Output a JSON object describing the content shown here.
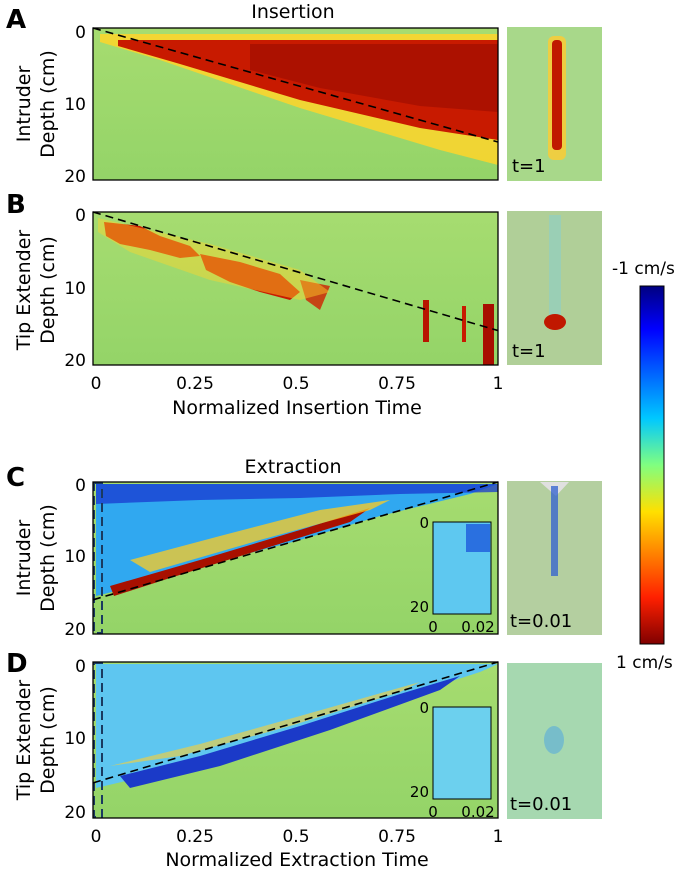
{
  "chart_data": [
    {
      "panel": "A",
      "type": "heatmap",
      "title": "Insertion",
      "ylabel_lines": [
        "Intruder",
        "Depth (cm)"
      ],
      "xlim": [
        0,
        1
      ],
      "ylim": [
        0,
        20
      ],
      "y_reversed": true,
      "yticks": [
        "0",
        "10",
        "20"
      ],
      "xticks": [],
      "reference_line": {
        "x": [
          0,
          1
        ],
        "y": [
          0,
          15
        ]
      },
      "region": "red band between depth 2 cm and the insertion front",
      "side_image_label": "t=1"
    },
    {
      "panel": "B",
      "type": "heatmap",
      "ylabel_lines": [
        "Tip Extender",
        "Depth (cm)"
      ],
      "xlabel": "Normalized Insertion Time",
      "xlim": [
        0,
        1
      ],
      "ylim": [
        0,
        20
      ],
      "y_reversed": true,
      "yticks": [
        "0",
        "10",
        "20"
      ],
      "xticks": [
        "0",
        "0.25",
        "0.5",
        "0.75",
        "1"
      ],
      "reference_line": {
        "x": [
          0,
          1
        ],
        "y": [
          0,
          15.5
        ]
      },
      "region": "localized red patches at the tip",
      "side_image_label": "t=1"
    },
    {
      "panel": "C",
      "type": "heatmap",
      "title": "Extraction",
      "ylabel_lines": [
        "Intruder",
        "Depth (cm)"
      ],
      "xlim": [
        0,
        1
      ],
      "ylim": [
        0,
        20
      ],
      "y_reversed": true,
      "yticks": [
        "0",
        "10",
        "20"
      ],
      "xticks": [],
      "reference_line": {
        "x": [
          0,
          1
        ],
        "y": [
          15.5,
          0
        ]
      },
      "region": "blue field above the extraction front with a red edge",
      "inset": {
        "yticks": [
          "0",
          "20"
        ],
        "xticks": [
          "0",
          "0.02"
        ]
      },
      "side_image_label": "t=0.01"
    },
    {
      "panel": "D",
      "type": "heatmap",
      "ylabel_lines": [
        "Tip Extender",
        "Depth (cm)"
      ],
      "xlabel": "Normalized Extraction Time",
      "xlim": [
        0,
        1
      ],
      "ylim": [
        0,
        20
      ],
      "y_reversed": true,
      "yticks": [
        "0",
        "10",
        "20"
      ],
      "xticks": [
        "0",
        "0.25",
        "0.5",
        "0.75",
        "1"
      ],
      "reference_line": {
        "x": [
          0,
          1
        ],
        "y": [
          15.5,
          0
        ]
      },
      "region": "light blue field above the extraction front",
      "inset": {
        "yticks": [
          "0",
          "20"
        ],
        "xticks": [
          "0",
          "0.02"
        ]
      },
      "side_image_label": "t=0.01"
    }
  ],
  "colorbar": {
    "top_label": "-1 cm/s",
    "bottom_label": "1 cm/s",
    "range": [
      -1,
      1
    ],
    "colormap": "jet reversed (blue = -1, green = 0, red = 1)"
  },
  "colors": {
    "background_field": "#9fd96b",
    "positive": "#b81400",
    "negative": "#1030c8",
    "line": "#000000"
  }
}
